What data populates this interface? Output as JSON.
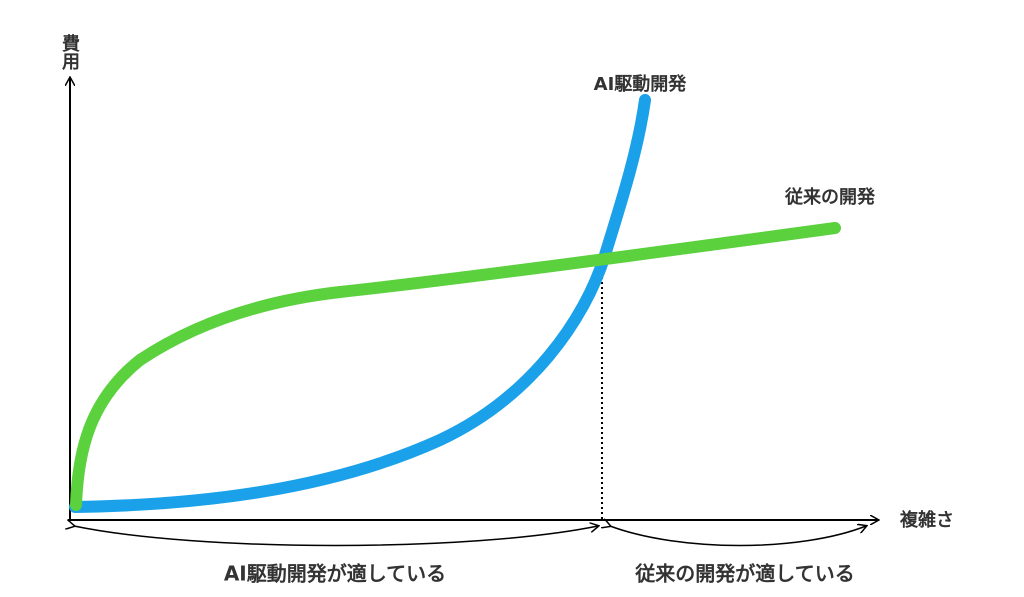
{
  "axes": {
    "y_label": "費用",
    "x_label": "複雑さ"
  },
  "curves": {
    "ai": {
      "label": "AI駆動開発"
    },
    "traditional": {
      "label": "従来の開発"
    }
  },
  "regions": {
    "left": {
      "label": "AI駆動開発が適している"
    },
    "right": {
      "label": "従来の開発が適している"
    }
  }
}
